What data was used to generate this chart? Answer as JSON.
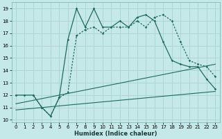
{
  "xlabel": "Humidex (Indice chaleur)",
  "bg_color": "#c5e8e8",
  "grid_color": "#aed4d4",
  "line_color": "#1e6b60",
  "xlim": [
    -0.5,
    23.5
  ],
  "ylim": [
    9.8,
    19.5
  ],
  "yticks": [
    10,
    11,
    12,
    13,
    14,
    15,
    16,
    17,
    18,
    19
  ],
  "xticks": [
    0,
    1,
    2,
    3,
    4,
    5,
    6,
    7,
    8,
    9,
    10,
    11,
    12,
    13,
    14,
    15,
    16,
    17,
    18,
    19,
    20,
    21,
    22,
    23
  ],
  "line1_x": [
    0,
    1,
    2,
    3,
    4,
    5,
    6,
    7,
    8,
    9,
    10,
    11,
    12,
    13,
    14,
    15,
    16,
    17,
    18,
    19,
    20,
    21,
    22,
    23
  ],
  "line1_y": [
    12,
    12,
    12,
    11,
    10.3,
    11.8,
    16.5,
    19.0,
    17.5,
    19.0,
    17.5,
    17.5,
    18.0,
    17.5,
    18.3,
    18.5,
    18.0,
    16.3,
    14.8,
    14.5,
    14.3,
    14.3,
    13.3,
    12.5
  ],
  "line2_x": [
    2,
    3,
    4,
    5,
    6,
    7,
    8,
    9,
    10,
    11,
    12,
    13,
    14,
    15,
    16,
    17,
    18,
    19,
    20,
    21,
    22,
    23
  ],
  "line2_y": [
    12,
    11,
    10.3,
    11.8,
    12.2,
    16.8,
    17.3,
    17.5,
    17.0,
    17.5,
    17.5,
    17.5,
    18.0,
    17.5,
    18.3,
    18.5,
    18.0,
    16.3,
    14.8,
    14.5,
    14.3,
    13.5
  ],
  "line3_x": [
    0,
    23
  ],
  "line3_y": [
    11.3,
    14.5
  ],
  "line4_x": [
    0,
    23
  ],
  "line4_y": [
    10.8,
    12.3
  ],
  "tick_fontsize": 5.0,
  "xlabel_fontsize": 6.0
}
